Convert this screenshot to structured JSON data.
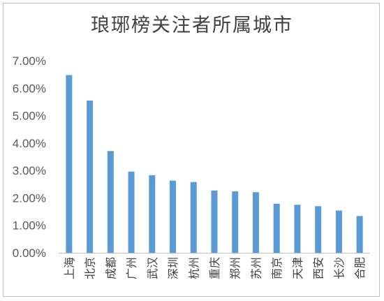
{
  "chart_data": {
    "type": "bar",
    "title": "琅琊榜关注者所属城市",
    "categories": [
      "上海",
      "北京",
      "成都",
      "广州",
      "武汉",
      "深圳",
      "杭州",
      "重庆",
      "郑州",
      "苏州",
      "南京",
      "天津",
      "西安",
      "长沙",
      "合肥"
    ],
    "values": [
      6.48,
      5.55,
      3.71,
      2.96,
      2.83,
      2.63,
      2.58,
      2.27,
      2.24,
      2.21,
      1.79,
      1.75,
      1.7,
      1.54,
      1.34
    ],
    "yticks": [
      "0.00%",
      "1.00%",
      "2.00%",
      "3.00%",
      "4.00%",
      "5.00%",
      "6.00%",
      "7.00%"
    ],
    "ylim": [
      0,
      7
    ],
    "grid": false,
    "legend": "none",
    "bar_color": "#5b9bd5",
    "xlabel": "",
    "ylabel": ""
  }
}
